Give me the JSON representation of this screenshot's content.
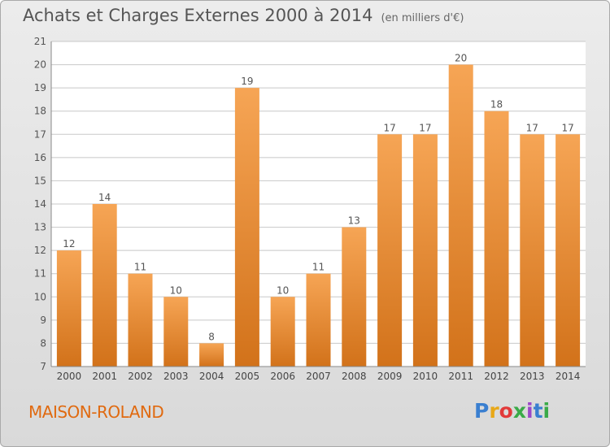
{
  "chart_data": {
    "type": "bar",
    "title": "Achats et Charges Externes 2000 à 2014",
    "subtitle": "(en milliers d'€)",
    "categories": [
      "2000",
      "2001",
      "2002",
      "2003",
      "2004",
      "2005",
      "2006",
      "2007",
      "2008",
      "2009",
      "2010",
      "2011",
      "2012",
      "2013",
      "2014"
    ],
    "values": [
      12,
      14,
      11,
      10,
      8,
      19,
      10,
      11,
      13,
      17,
      17,
      20,
      18,
      17,
      17
    ],
    "ylim": [
      7,
      21
    ],
    "yticks": [
      7,
      8,
      9,
      10,
      11,
      12,
      13,
      14,
      15,
      16,
      17,
      18,
      19,
      20,
      21
    ],
    "grid": true,
    "bar_color": "#e68a2e",
    "label_color": "#555555"
  },
  "footer": {
    "place": "MAISON-ROLAND",
    "brand": [
      "P",
      "r",
      "o",
      "x",
      "i",
      "t",
      "i"
    ]
  }
}
